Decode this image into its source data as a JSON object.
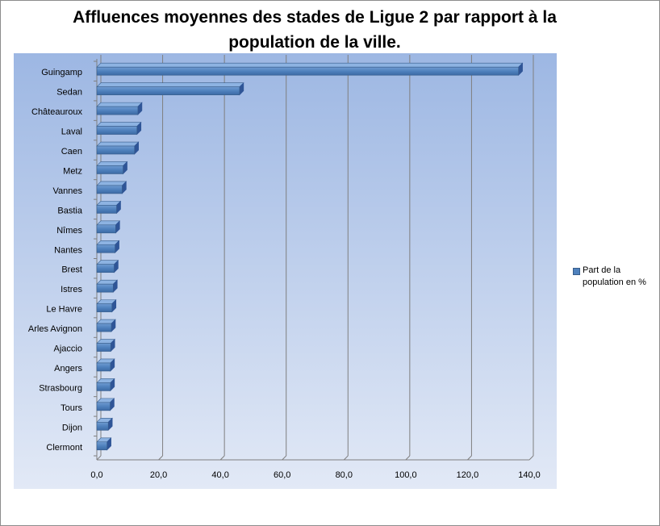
{
  "chart_data": {
    "type": "bar",
    "orientation": "horizontal",
    "title": "Affluences moyennes des stades de Ligue 2 par rapport à la population de la ville.",
    "categories": [
      "Guingamp",
      "Sedan",
      "Châteauroux",
      "Laval",
      "Caen",
      "Metz",
      "Vannes",
      "Bastia",
      "Nîmes",
      "Nantes",
      "Brest",
      "Istres",
      "Le Havre",
      "Arles Avignon",
      "Ajaccio",
      "Angers",
      "Strasbourg",
      "Tours",
      "Dijon",
      "Clermont"
    ],
    "series": [
      {
        "name": "Part de la population en %",
        "values": [
          136.5,
          46.2,
          13.3,
          13.0,
          12.2,
          8.5,
          8.2,
          6.4,
          6.1,
          5.9,
          5.6,
          5.3,
          4.9,
          4.7,
          4.5,
          4.4,
          4.4,
          4.3,
          3.7,
          3.3
        ],
        "color": "#4f81bd"
      }
    ],
    "xlim": [
      0,
      140
    ],
    "xticks": [
      "0,0",
      "20,0",
      "40,0",
      "60,0",
      "80,0",
      "100,0",
      "120,0",
      "140,0"
    ],
    "grid": true,
    "legend_position": "right"
  },
  "colors": {
    "bar": "#4f81bd",
    "bar_dark": "#385d8a",
    "bar_light": "#8db3e2",
    "plot_top": "#9db7e3",
    "plot_bottom": "#dfe7f5"
  }
}
